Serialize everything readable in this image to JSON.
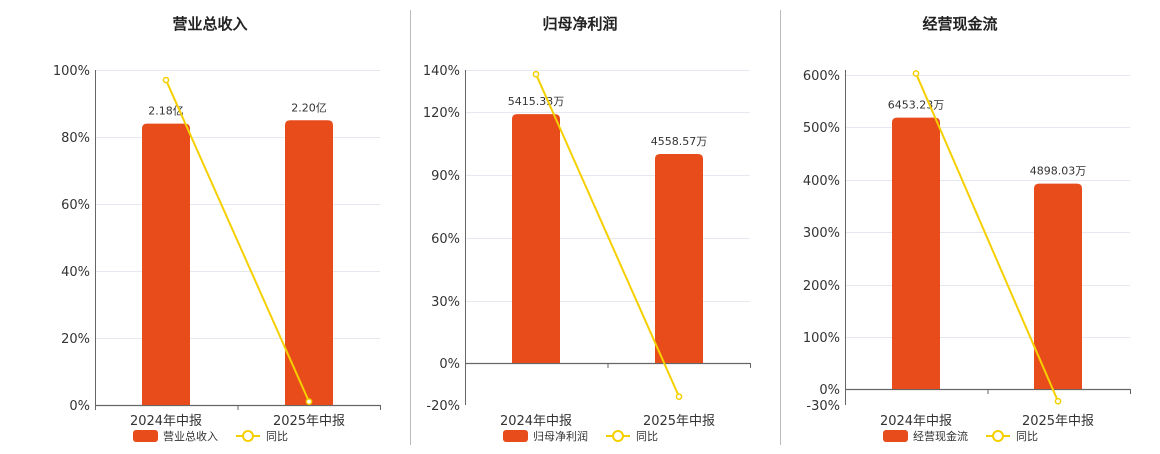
{
  "colors": {
    "bar": "#e84c1a",
    "line": "#f5d000",
    "grid": "#e6e8f0",
    "axis": "#666666",
    "divider": "#bbbbbb"
  },
  "chart_data": [
    {
      "type": "bar",
      "title": "营业总收入",
      "categories": [
        "2024年中报",
        "2025年中报"
      ],
      "y_ticks": [
        "100%",
        "80%",
        "60%",
        "40%",
        "20%",
        "0%"
      ],
      "ylim": [
        0,
        100
      ],
      "series": [
        {
          "name": "营业总收入",
          "type": "bar",
          "values": [
            84,
            85
          ],
          "labels": [
            "2.18亿",
            "2.20亿"
          ]
        },
        {
          "name": "同比",
          "type": "line",
          "values": [
            97,
            1
          ]
        }
      ]
    },
    {
      "type": "bar",
      "title": "归母净利润",
      "categories": [
        "2024年中报",
        "2025年中报"
      ],
      "y_ticks": [
        "140%",
        "120%",
        "90%",
        "60%",
        "30%",
        "0%",
        "-20%"
      ],
      "ylim": [
        -20,
        140
      ],
      "series": [
        {
          "name": "归母净利润",
          "type": "bar",
          "values": [
            119,
            100
          ],
          "labels": [
            "5415.33万",
            "4558.57万"
          ]
        },
        {
          "name": "同比",
          "type": "line",
          "values": [
            138,
            -16
          ]
        }
      ]
    },
    {
      "type": "bar",
      "title": "经营现金流",
      "categories": [
        "2024年中报",
        "2025年中报"
      ],
      "y_ticks": [
        "600%",
        "500%",
        "400%",
        "300%",
        "200%",
        "100%",
        "0%",
        "-30%"
      ],
      "ylim": [
        -30,
        610
      ],
      "series": [
        {
          "name": "经营现金流",
          "type": "bar",
          "values": [
            518,
            393
          ],
          "labels": [
            "6453.23万",
            "4898.03万"
          ]
        },
        {
          "name": "同比",
          "type": "line",
          "values": [
            603,
            -23
          ]
        }
      ]
    }
  ]
}
